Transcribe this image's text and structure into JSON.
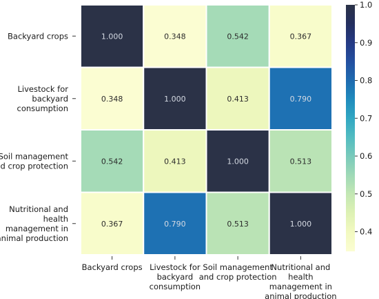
{
  "chart_data": {
    "type": "heatmap",
    "title": "",
    "xlabel": "",
    "ylabel": "",
    "rows": [
      {
        "label": "Backyard crops",
        "lines": [
          "Backyard crops"
        ]
      },
      {
        "label": "Livestock for backyard consumption",
        "lines": [
          "Livestock for",
          "backyard",
          "consumption"
        ]
      },
      {
        "label": "Soil management and crop protection",
        "lines": [
          "Soil management",
          "and crop protection"
        ]
      },
      {
        "label": "Nutritional and health management in animal production",
        "lines": [
          "Nutritional and",
          "health",
          "management in",
          "animal production"
        ]
      }
    ],
    "columns": [
      {
        "label": "Backyard crops",
        "lines": [
          "Backyard crops"
        ]
      },
      {
        "label": "Livestock for backyard consumption",
        "lines": [
          "Livestock for",
          "backyard",
          "consumption"
        ]
      },
      {
        "label": "Soil management and crop protection",
        "lines": [
          "Soil management",
          "and crop protection"
        ]
      },
      {
        "label": "Nutritional and health management in animal production",
        "lines": [
          "Nutritional and",
          "health",
          "management in",
          "animal production"
        ]
      }
    ],
    "values": [
      [
        1.0,
        0.348,
        0.542,
        0.367
      ],
      [
        0.348,
        1.0,
        0.413,
        0.79
      ],
      [
        0.542,
        0.413,
        1.0,
        0.513
      ],
      [
        0.367,
        0.79,
        0.513,
        1.0
      ]
    ],
    "value_format": "0.000",
    "colorbar": {
      "colormap": "YlGnBu",
      "range": [
        0.348,
        1.0
      ],
      "ticks": [
        "1.0",
        "0.9",
        "0.8",
        "0.7",
        "0.6",
        "0.5",
        "0.4"
      ],
      "tick_values": [
        1.0,
        0.9,
        0.8,
        0.7,
        0.6,
        0.5,
        0.4
      ],
      "colors": [
        {
          "v": 0.348,
          "c": "#fbfdd2"
        },
        {
          "v": 0.4,
          "c": "#f2f9c0"
        },
        {
          "v": 0.45,
          "c": "#ddf1b4"
        },
        {
          "v": 0.5,
          "c": "#c3e7b4"
        },
        {
          "v": 0.55,
          "c": "#9fd9b7"
        },
        {
          "v": 0.6,
          "c": "#79cabb"
        },
        {
          "v": 0.65,
          "c": "#52bcc1"
        },
        {
          "v": 0.7,
          "c": "#31a7c2"
        },
        {
          "v": 0.75,
          "c": "#1f8bbd"
        },
        {
          "v": 0.8,
          "c": "#1e6bb0"
        },
        {
          "v": 0.85,
          "c": "#234fa0"
        },
        {
          "v": 0.9,
          "c": "#253a84"
        },
        {
          "v": 0.95,
          "c": "#242f5f"
        },
        {
          "v": 1.0,
          "c": "#2b3247"
        }
      ]
    },
    "grid": true
  }
}
